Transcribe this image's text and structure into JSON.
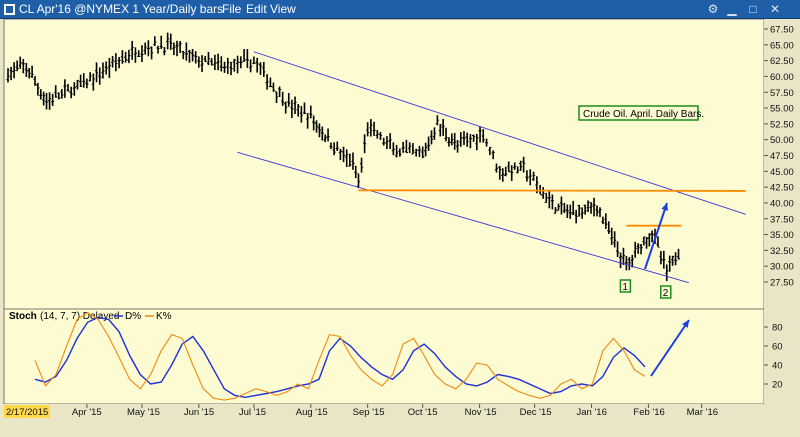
{
  "window": {
    "title": "CL Apr'16 @NYMEX  1 Year/Daily bars",
    "menu": [
      "File",
      "Edit",
      "View"
    ],
    "controls": [
      "settings-icon",
      "minimize-icon",
      "maximize-icon",
      "close-icon"
    ]
  },
  "colors": {
    "background": "#fdfbd2",
    "axis_bg": "#e9e6c8",
    "bars": "#000000",
    "trendline": "#3a3ad6",
    "support": "#ff8c00",
    "arrow": "#1a3fe0",
    "label_border": "#1c8c1c"
  },
  "chart_data": [
    {
      "type": "ohlc",
      "title": "",
      "y_ticks": [
        "67.50",
        "65.00",
        "62.50",
        "60.00",
        "57.50",
        "55.00",
        "52.50",
        "50.00",
        "47.50",
        "45.00",
        "42.50",
        "40.00",
        "37.50",
        "35.00",
        "32.50",
        "30.00",
        "27.50"
      ],
      "ylim": [
        26.5,
        68.5
      ],
      "x_labels": [
        "Apr '15",
        "May '15",
        "Jun '15",
        "Jul '15",
        "Aug '15",
        "Sep '15",
        "Oct '15",
        "Nov '15",
        "Dec '15",
        "Jan '16",
        "Feb '16",
        "Mar '16"
      ],
      "x_start_label": "2/17/2015",
      "approx_close_path": [
        [
          "2015-02-17",
          60.5
        ],
        [
          "2015-02-27",
          61.5
        ],
        [
          "2015-03-10",
          56.0
        ],
        [
          "2015-03-20",
          57.5
        ],
        [
          "2015-04-01",
          59.0
        ],
        [
          "2015-04-15",
          62.0
        ],
        [
          "2015-05-01",
          64.5
        ],
        [
          "2015-05-15",
          65.0
        ],
        [
          "2015-06-01",
          62.5
        ],
        [
          "2015-06-15",
          61.5
        ],
        [
          "2015-07-01",
          62.5
        ],
        [
          "2015-07-10",
          59.0
        ],
        [
          "2015-07-20",
          55.5
        ],
        [
          "2015-08-01",
          53.5
        ],
        [
          "2015-08-12",
          49.5
        ],
        [
          "2015-08-24",
          46.0
        ],
        [
          "2015-08-27",
          43.0
        ],
        [
          "2015-09-01",
          52.0
        ],
        [
          "2015-09-15",
          48.5
        ],
        [
          "2015-10-01",
          47.5
        ],
        [
          "2015-10-09",
          52.5
        ],
        [
          "2015-10-20",
          49.0
        ],
        [
          "2015-11-03",
          51.0
        ],
        [
          "2015-11-12",
          45.0
        ],
        [
          "2015-11-25",
          45.5
        ],
        [
          "2015-12-04",
          42.0
        ],
        [
          "2015-12-14",
          39.0
        ],
        [
          "2015-12-22",
          38.5
        ],
        [
          "2016-01-04",
          39.5
        ],
        [
          "2016-01-12",
          34.5
        ],
        [
          "2016-01-20",
          30.0
        ],
        [
          "2016-01-28",
          33.5
        ],
        [
          "2016-02-03",
          35.5
        ],
        [
          "2016-02-11",
          29.0
        ],
        [
          "2016-02-19",
          33.0
        ]
      ],
      "lines": [
        {
          "name": "",
          "kind": "upper-channel",
          "points": [
            [
              "2015-07-01",
              63.9
            ],
            [
              "2016-03-25",
              38.2
            ]
          ]
        },
        {
          "name": "",
          "kind": "lower-channel",
          "points": [
            [
              "2015-06-22",
              48.0
            ],
            [
              "2016-02-23",
              27.4
            ]
          ]
        },
        {
          "name": "",
          "kind": "support",
          "points": [
            [
              "2015-08-27",
              42.0
            ],
            [
              "2016-03-25",
              41.9
            ]
          ]
        },
        {
          "name": "",
          "kind": "resistance",
          "points": [
            [
              "2016-01-20",
              36.4
            ],
            [
              "2016-02-19",
              36.4
            ]
          ]
        }
      ],
      "annotations": [
        {
          "text": "Crude Oil. April. Daily Bars.",
          "kind": "label"
        },
        {
          "text": "1",
          "kind": "marker",
          "date": "2016-01-20"
        },
        {
          "text": "2",
          "kind": "marker",
          "date": "2016-02-11"
        }
      ]
    },
    {
      "type": "line",
      "title": "Stoch",
      "params": "(14, 7, 7) Delayed",
      "legend": [
        "D%",
        "K%"
      ],
      "y_ticks": [
        "80",
        "60",
        "40",
        "20"
      ],
      "ylim": [
        0,
        100
      ],
      "series": [
        {
          "name": "D%",
          "color": "#1f2fd6",
          "values": [
            25,
            22,
            28,
            45,
            68,
            85,
            90,
            88,
            75,
            50,
            30,
            20,
            22,
            40,
            62,
            70,
            55,
            35,
            15,
            8,
            6,
            8,
            10,
            12,
            15,
            18,
            20,
            25,
            55,
            68,
            60,
            48,
            38,
            30,
            25,
            35,
            55,
            62,
            52,
            38,
            28,
            20,
            18,
            22,
            30,
            28,
            25,
            20,
            15,
            10,
            12,
            18,
            20,
            18,
            28,
            48,
            58,
            50,
            38
          ]
        },
        {
          "name": "K%",
          "color": "#ef8a12",
          "values": [
            45,
            18,
            30,
            60,
            88,
            95,
            88,
            70,
            48,
            25,
            15,
            30,
            55,
            72,
            68,
            40,
            15,
            5,
            3,
            5,
            10,
            15,
            12,
            8,
            12,
            20,
            15,
            45,
            72,
            70,
            50,
            35,
            25,
            18,
            30,
            62,
            68,
            50,
            30,
            20,
            15,
            25,
            42,
            40,
            25,
            18,
            12,
            8,
            5,
            8,
            20,
            25,
            15,
            20,
            55,
            68,
            55,
            35,
            28
          ]
        }
      ]
    }
  ]
}
